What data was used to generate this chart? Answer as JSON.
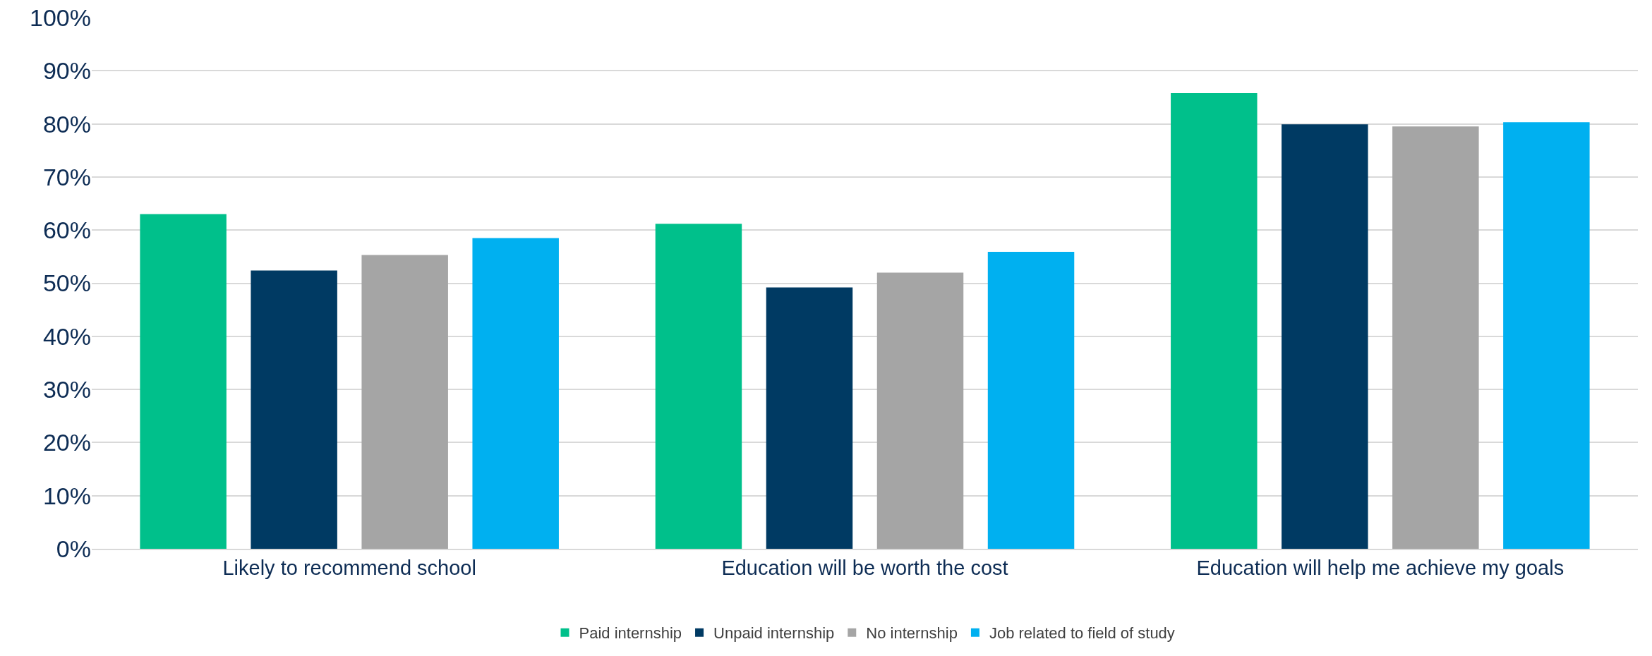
{
  "chart_data": {
    "type": "bar",
    "categories": [
      "Likely to recommend school",
      "Education will be worth the cost",
      "Education will help me achieve my goals"
    ],
    "series": [
      {
        "name": "Paid internship",
        "color": "#00c08b",
        "values": [
          63,
          61.2,
          85.8
        ]
      },
      {
        "name": "Unpaid internship",
        "color": "#003a63",
        "values": [
          52.4,
          49.2,
          79.9
        ]
      },
      {
        "name": "No internship",
        "color": "#a5a5a5",
        "values": [
          55.3,
          52,
          79.5
        ]
      },
      {
        "name": "Job related to field of study",
        "color": "#00b0f0",
        "values": [
          58.5,
          55.9,
          80.3
        ]
      }
    ],
    "ylim": [
      0,
      100
    ],
    "yticks": [
      {
        "value": 0,
        "label": "0%"
      },
      {
        "value": 10,
        "label": "10%"
      },
      {
        "value": 20,
        "label": "20%"
      },
      {
        "value": 30,
        "label": "30%"
      },
      {
        "value": 40,
        "label": "40%"
      },
      {
        "value": 50,
        "label": "50%"
      },
      {
        "value": 60,
        "label": "60%"
      },
      {
        "value": 70,
        "label": "70%"
      },
      {
        "value": 80,
        "label": "80%"
      },
      {
        "value": 90,
        "label": "90%"
      },
      {
        "value": 100,
        "label": "100%"
      }
    ],
    "grid": "y",
    "legend": "bottom"
  }
}
